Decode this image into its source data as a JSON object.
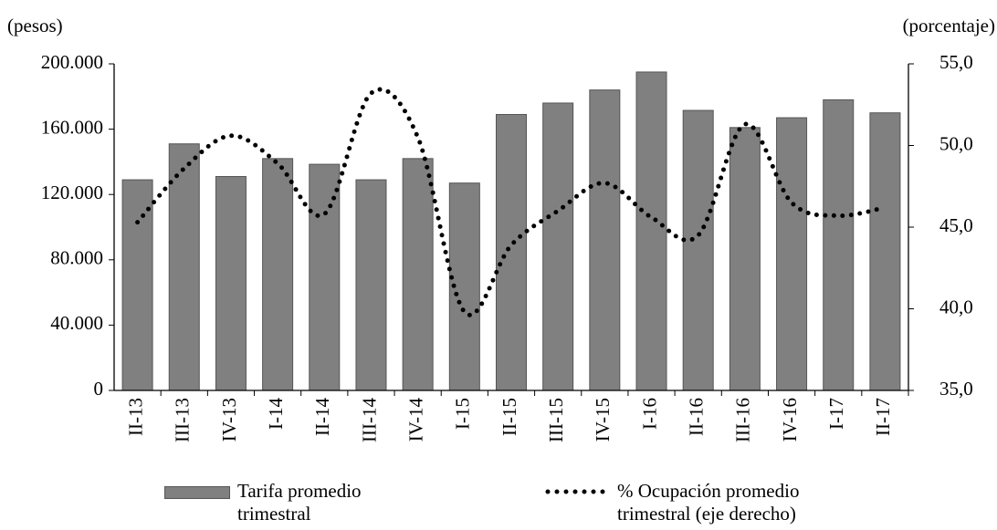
{
  "chart_data": {
    "type": "bar_line",
    "y_label": "(pesos)",
    "y2_label": "(porcentaje)",
    "categories": [
      "II-13",
      "III-13",
      "IV-13",
      "I-14",
      "II-14",
      "III-14",
      "IV-14",
      "I-15",
      "II-15",
      "III-15",
      "IV-15",
      "I-16",
      "II-16",
      "III-16",
      "IV-16",
      "I-17",
      "II-17"
    ],
    "series": [
      {
        "name": "Tarifa promedio trimestral",
        "type": "bar",
        "color": "#808080",
        "values": [
          129000,
          151000,
          131000,
          142000,
          138500,
          129000,
          142000,
          127000,
          169000,
          176000,
          184000,
          195000,
          171500,
          161000,
          167000,
          178000,
          170000
        ]
      },
      {
        "name": "% Ocupación promedio trimestral (eje derecho)",
        "type": "line",
        "axis": "y2",
        "color": "#000000",
        "values": [
          45.3,
          48.6,
          50.6,
          48.9,
          45.8,
          53.2,
          50.5,
          39.8,
          43.9,
          46.0,
          47.7,
          45.6,
          44.5,
          51.3,
          46.5,
          45.7,
          46.2
        ]
      }
    ],
    "ylim": [
      0,
      200000
    ],
    "yticks": [
      0,
      {
        "value": 40000,
        "label": "40.000"
      },
      {
        "value": 80000,
        "label": "80.000"
      },
      {
        "value": 120000,
        "label": "120.000"
      },
      {
        "value": 160000,
        "label": "160.000"
      },
      {
        "value": 200000,
        "label": "200.000"
      }
    ],
    "y2lim": [
      35,
      55
    ],
    "y2ticks": [
      {
        "value": 35,
        "label": "35,0"
      },
      {
        "value": 40,
        "label": "40,0"
      },
      {
        "value": 45,
        "label": "45,0"
      },
      {
        "value": 50,
        "label": "50,0"
      },
      {
        "value": 55,
        "label": "55,0"
      }
    ]
  }
}
